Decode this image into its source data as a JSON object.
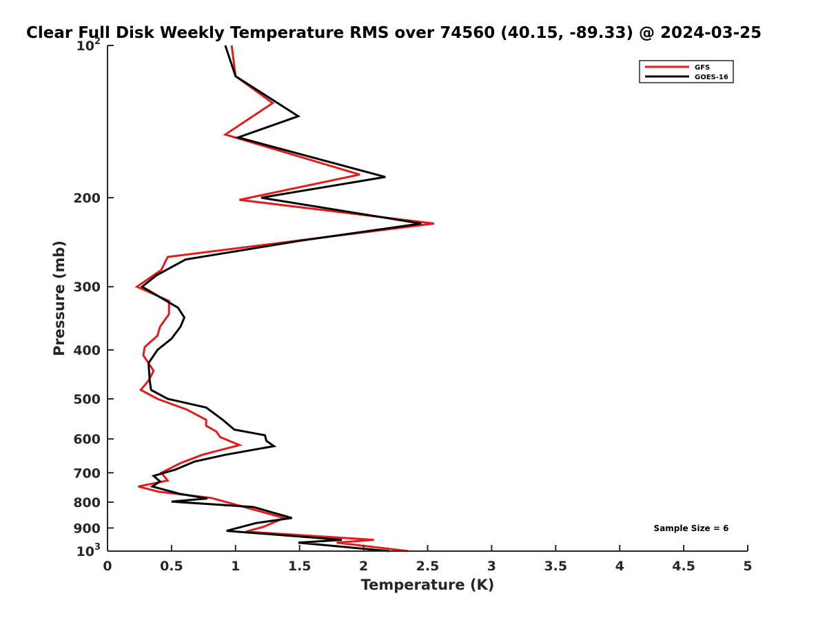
{
  "chart_data": {
    "type": "line",
    "title": "Clear Full Disk Weekly Temperature RMS over 74560 (40.15, -89.33) @ 2024-03-25",
    "xlabel": "Temperature (K)",
    "ylabel": "Pressure (mb)",
    "xlim": [
      0,
      5
    ],
    "ylim": [
      1000,
      100
    ],
    "y_scale": "log",
    "grid": false,
    "legend_position": "top-right",
    "annotation": "Sample Size = 6",
    "x_ticks": [
      {
        "value": 0,
        "label": "0"
      },
      {
        "value": 0.5,
        "label": "0.5"
      },
      {
        "value": 1,
        "label": "1"
      },
      {
        "value": 1.5,
        "label": "1.5"
      },
      {
        "value": 2,
        "label": "2"
      },
      {
        "value": 2.5,
        "label": "2.5"
      },
      {
        "value": 3,
        "label": "3"
      },
      {
        "value": 3.5,
        "label": "3.5"
      },
      {
        "value": 4,
        "label": "4"
      },
      {
        "value": 4.5,
        "label": "4.5"
      },
      {
        "value": 5,
        "label": "5"
      }
    ],
    "y_ticks": [
      {
        "value": 100,
        "base": "10",
        "exp": "2"
      },
      {
        "value": 200,
        "label": "200"
      },
      {
        "value": 300,
        "label": "300"
      },
      {
        "value": 400,
        "label": "400"
      },
      {
        "value": 500,
        "label": "500"
      },
      {
        "value": 600,
        "label": "600"
      },
      {
        "value": 700,
        "label": "700"
      },
      {
        "value": 800,
        "label": "800"
      },
      {
        "value": 900,
        "label": "900"
      },
      {
        "value": 1000,
        "base": "10",
        "exp": "3"
      }
    ],
    "series": [
      {
        "name": "GFS",
        "color": "#e41a1c",
        "points": [
          [
            0.97,
            100
          ],
          [
            1.0,
            115
          ],
          [
            1.29,
            130
          ],
          [
            0.92,
            150
          ],
          [
            1.97,
            180
          ],
          [
            1.03,
            202
          ],
          [
            2.55,
            225
          ],
          [
            1.5,
            243
          ],
          [
            0.47,
            262
          ],
          [
            0.42,
            278
          ],
          [
            0.23,
            300
          ],
          [
            0.48,
            320
          ],
          [
            0.48,
            340
          ],
          [
            0.41,
            360
          ],
          [
            0.39,
            375
          ],
          [
            0.29,
            395
          ],
          [
            0.28,
            410
          ],
          [
            0.36,
            440
          ],
          [
            0.32,
            460
          ],
          [
            0.26,
            480
          ],
          [
            0.39,
            500
          ],
          [
            0.62,
            525
          ],
          [
            0.77,
            550
          ],
          [
            0.77,
            565
          ],
          [
            0.85,
            580
          ],
          [
            0.88,
            595
          ],
          [
            1.03,
            617
          ],
          [
            0.74,
            645
          ],
          [
            0.57,
            670
          ],
          [
            0.42,
            700
          ],
          [
            0.47,
            725
          ],
          [
            0.24,
            745
          ],
          [
            0.4,
            763
          ],
          [
            0.81,
            785
          ],
          [
            1.38,
            860
          ],
          [
            1.22,
            895
          ],
          [
            1.08,
            915
          ],
          [
            2.08,
            950
          ],
          [
            1.79,
            962
          ],
          [
            2.35,
            1000
          ]
        ]
      },
      {
        "name": "GOES-16",
        "color": "#000000",
        "points": [
          [
            0.92,
            100
          ],
          [
            1.0,
            115
          ],
          [
            1.49,
            138
          ],
          [
            1.02,
            152
          ],
          [
            2.17,
            182
          ],
          [
            1.2,
            200
          ],
          [
            2.45,
            225
          ],
          [
            1.52,
            243
          ],
          [
            0.61,
            265
          ],
          [
            0.38,
            285
          ],
          [
            0.27,
            300
          ],
          [
            0.55,
            330
          ],
          [
            0.6,
            345
          ],
          [
            0.57,
            360
          ],
          [
            0.5,
            380
          ],
          [
            0.39,
            400
          ],
          [
            0.32,
            425
          ],
          [
            0.33,
            460
          ],
          [
            0.34,
            480
          ],
          [
            0.47,
            500
          ],
          [
            0.77,
            520
          ],
          [
            0.9,
            550
          ],
          [
            0.99,
            575
          ],
          [
            1.23,
            590
          ],
          [
            1.24,
            605
          ],
          [
            1.3,
            620
          ],
          [
            0.92,
            645
          ],
          [
            0.68,
            665
          ],
          [
            0.53,
            690
          ],
          [
            0.36,
            710
          ],
          [
            0.41,
            728
          ],
          [
            0.35,
            745
          ],
          [
            0.56,
            770
          ],
          [
            0.78,
            787
          ],
          [
            0.5,
            798
          ],
          [
            1.14,
            818
          ],
          [
            1.44,
            860
          ],
          [
            1.16,
            880
          ],
          [
            0.93,
            912
          ],
          [
            1.83,
            950
          ],
          [
            1.49,
            962
          ],
          [
            2.2,
            1000
          ]
        ]
      }
    ]
  }
}
